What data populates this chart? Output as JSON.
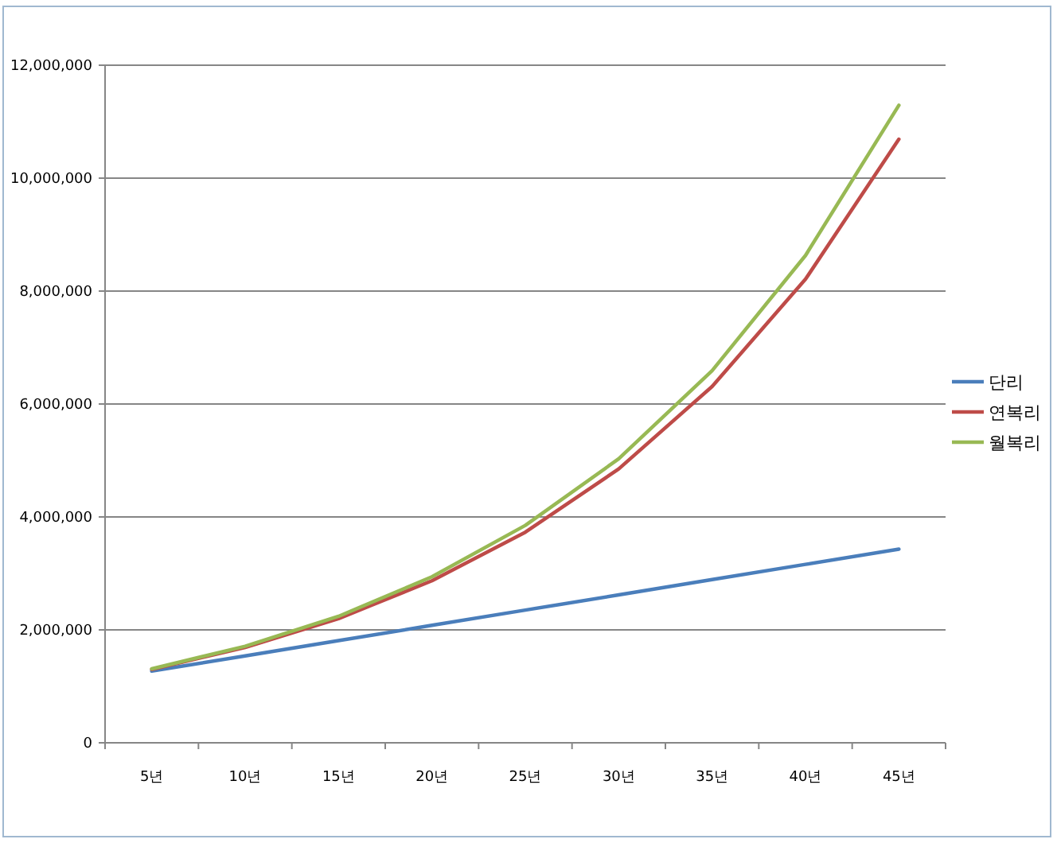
{
  "chart_data": {
    "type": "line",
    "categories": [
      "5년",
      "10년",
      "15년",
      "20년",
      "25년",
      "30년",
      "35년",
      "40년",
      "45년"
    ],
    "series": [
      {
        "name": "단리",
        "color": "#4a7ebb",
        "values": [
          1270000,
          1540000,
          1810000,
          2080000,
          2350000,
          2620000,
          2890000,
          3160000,
          3430000
        ]
      },
      {
        "name": "연복리",
        "color": "#be4b48",
        "values": [
          1300000,
          1690000,
          2200000,
          2870000,
          3730000,
          4850000,
          6310000,
          8210000,
          10690000
        ]
      },
      {
        "name": "월복리",
        "color": "#98b954",
        "values": [
          1310000,
          1710000,
          2240000,
          2940000,
          3850000,
          5030000,
          6590000,
          8630000,
          11290000
        ]
      }
    ],
    "ylim": [
      0,
      12000000
    ],
    "yticks": [
      0,
      {
        "value": 2000000,
        "label": "2,000,000"
      },
      {
        "value": 4000000,
        "label": "4,000,000"
      },
      {
        "value": 6000000,
        "label": "6,000,000"
      },
      {
        "value": 8000000,
        "label": "8,000,000"
      },
      {
        "value": 10000000,
        "label": "10,000,000"
      },
      {
        "value": 12000000,
        "label": "12,000,000"
      }
    ],
    "grid": "y",
    "legend": "right",
    "marker": "none",
    "line_style": "solid"
  }
}
